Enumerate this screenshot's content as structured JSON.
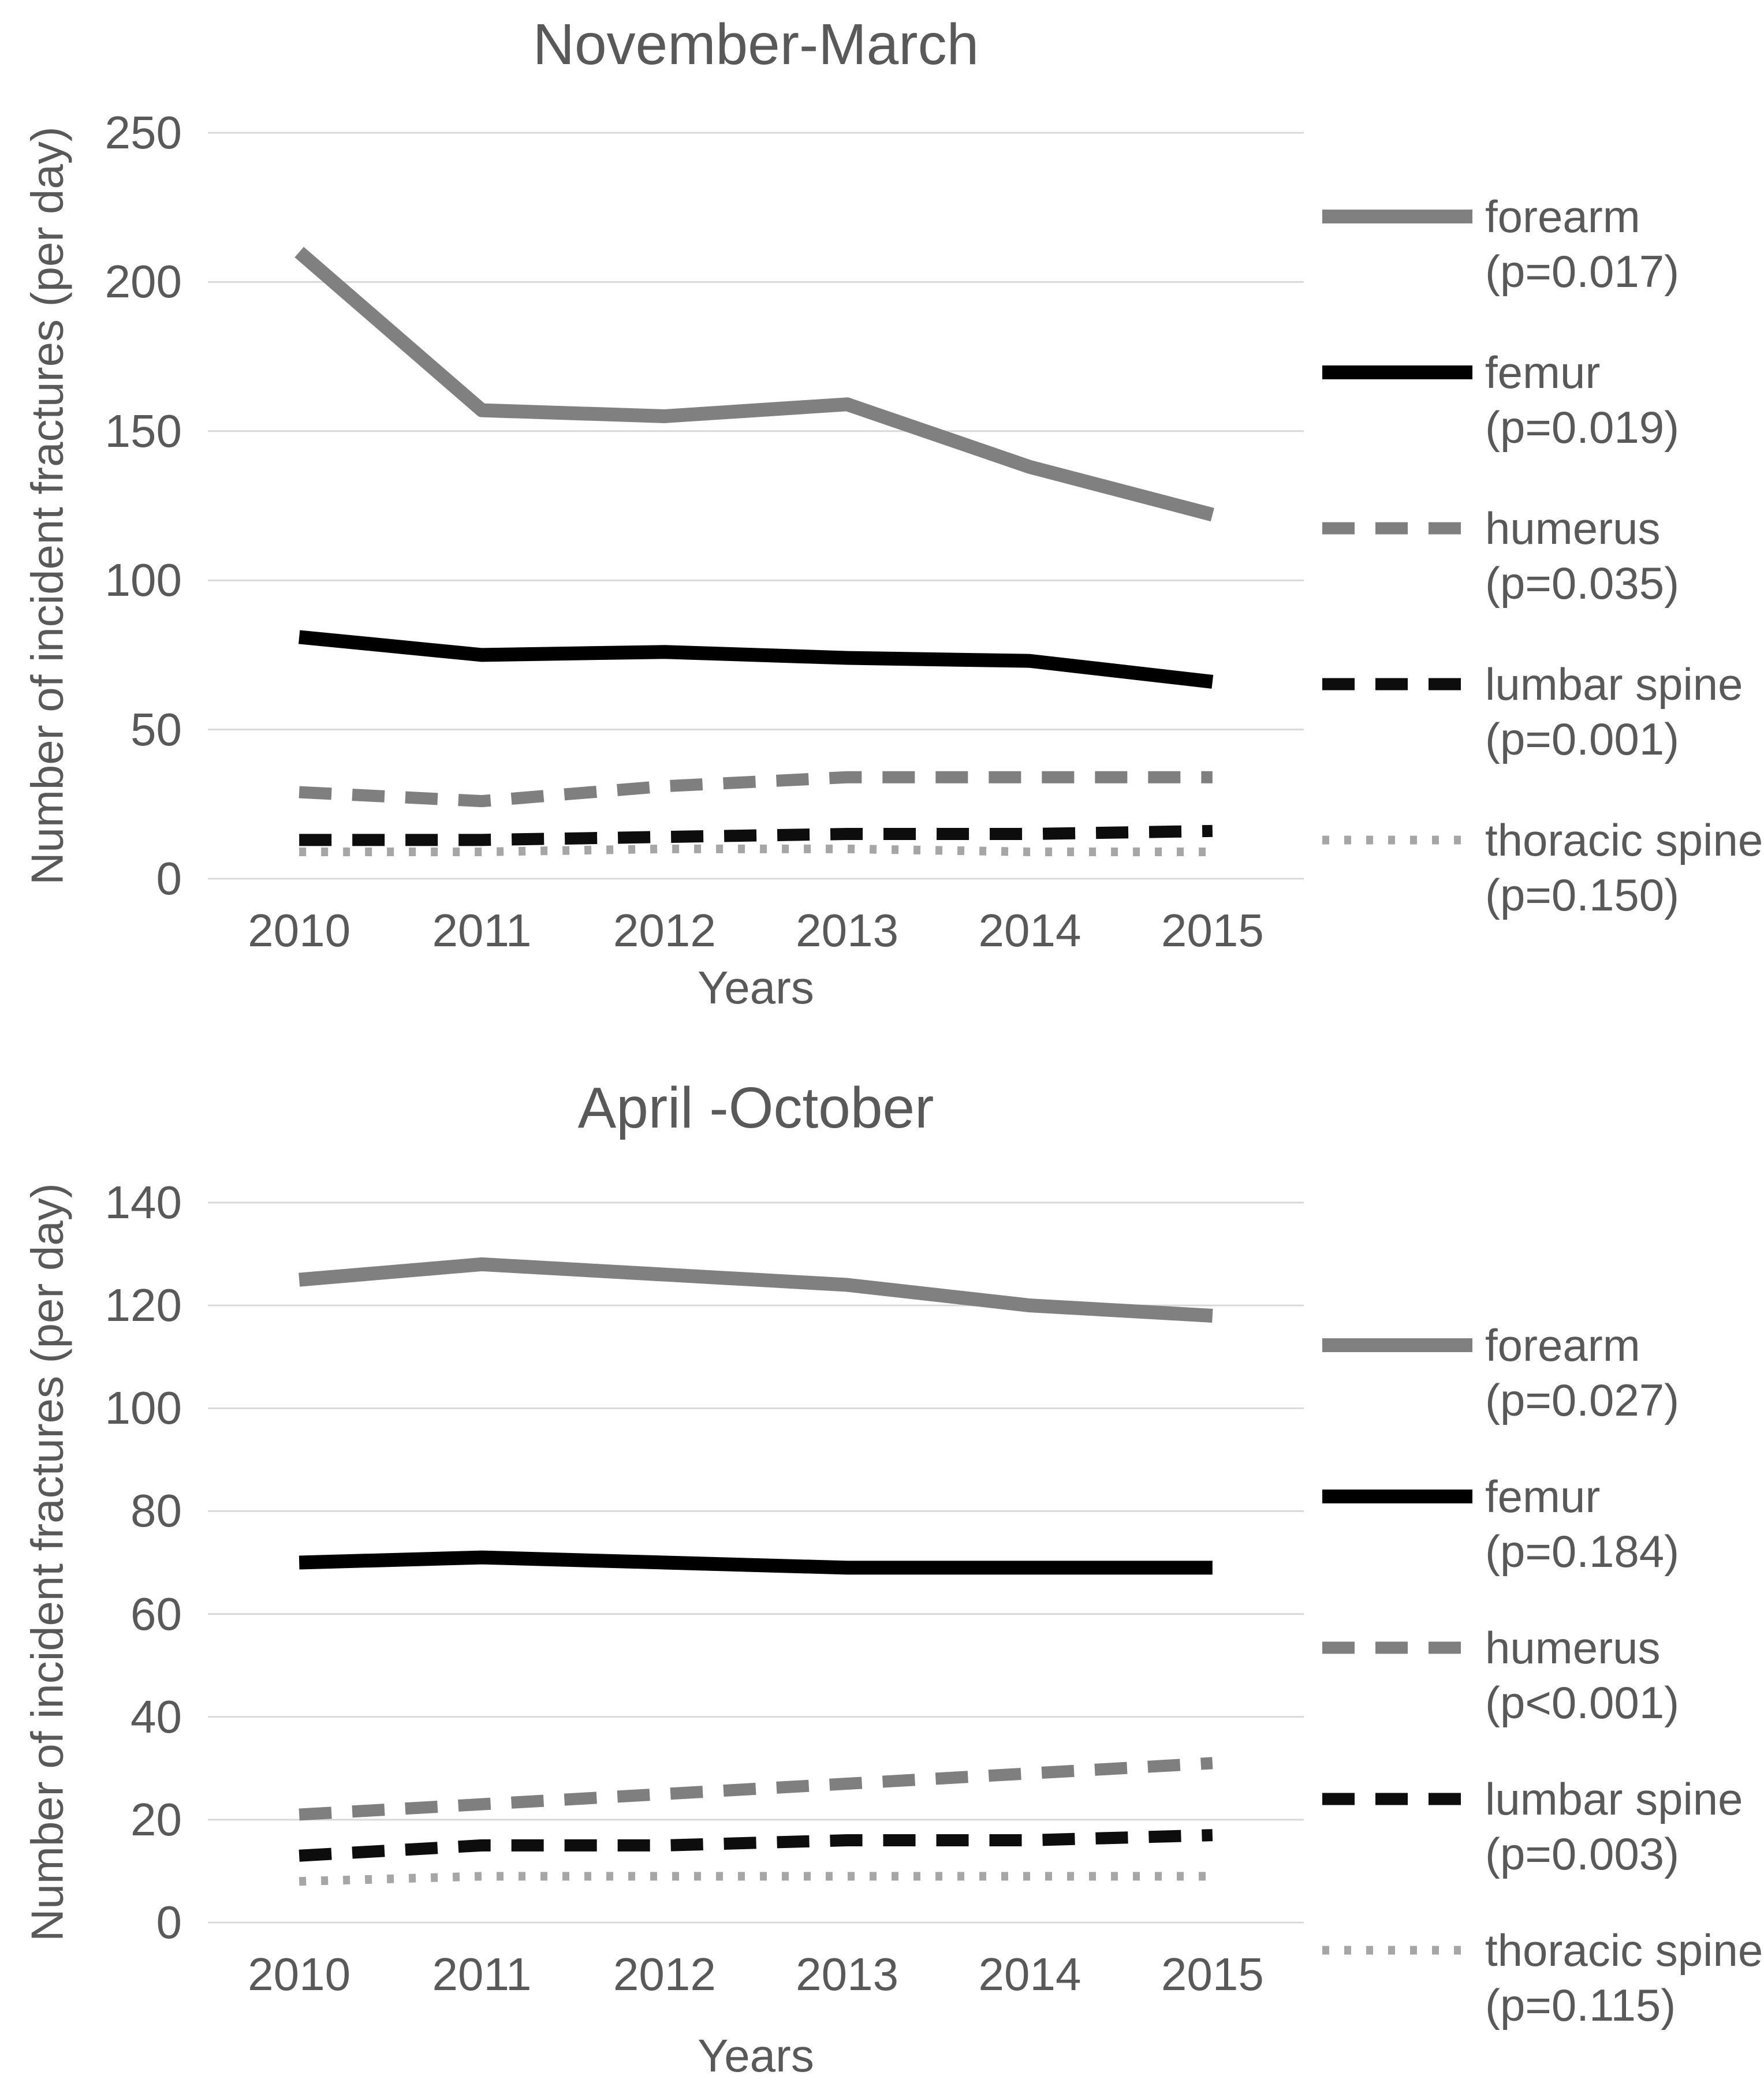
{
  "page": {
    "background": "#ffffff"
  },
  "styles": {
    "text_color": "#595959",
    "gridline_color": "#d9d9d9"
  },
  "chart_data": [
    {
      "type": "line",
      "title": "November-March",
      "xlabel": "Years",
      "ylabel": "Number of incident fractures (per day)",
      "categories": [
        "2010",
        "2011",
        "2012",
        "2013",
        "2014",
        "2015"
      ],
      "ylim": [
        0,
        250
      ],
      "yticks": [
        250,
        200,
        150,
        100,
        50,
        0
      ],
      "grid": true,
      "legend_position": "right",
      "series": [
        {
          "name": "forearm",
          "p_label": "(p=0.017)",
          "style": "solid",
          "color": "#808080",
          "values": [
            210,
            157,
            155,
            159,
            138,
            122
          ]
        },
        {
          "name": "femur",
          "p_label": "(p=0.019)",
          "style": "solid",
          "color": "#000000",
          "values": [
            81,
            75,
            76,
            74,
            73,
            66
          ]
        },
        {
          "name": "humerus",
          "p_label": "(p=0.035)",
          "style": "dashed",
          "color": "#7f7f7f",
          "values": [
            29,
            26,
            31,
            34,
            34,
            34
          ]
        },
        {
          "name": "lumbar spine",
          "p_label": "(p=0.001)",
          "style": "dashed",
          "color": "#0d0d0d",
          "values": [
            13,
            13,
            14,
            15,
            15,
            16
          ]
        },
        {
          "name": "thoracic spine",
          "p_label": "(p=0.150)",
          "style": "dotted",
          "color": "#a6a6a6",
          "values": [
            9,
            9,
            10,
            10,
            9,
            9
          ]
        }
      ]
    },
    {
      "type": "line",
      "title": "April -October",
      "xlabel": "Years",
      "ylabel": "Number of incident fractures (per day)",
      "categories": [
        "2010",
        "2011",
        "2012",
        "2013",
        "2014",
        "2015"
      ],
      "ylim": [
        0,
        140
      ],
      "yticks": [
        140,
        120,
        100,
        80,
        60,
        40,
        20,
        0
      ],
      "grid": true,
      "legend_position": "right",
      "series": [
        {
          "name": "forearm",
          "p_label": "(p=0.027)",
          "style": "solid",
          "color": "#808080",
          "values": [
            125,
            128,
            126,
            124,
            120,
            118
          ]
        },
        {
          "name": "femur",
          "p_label": "(p=0.184)",
          "style": "solid",
          "color": "#000000",
          "values": [
            70,
            71,
            70,
            69,
            69,
            69
          ]
        },
        {
          "name": "humerus",
          "p_label": "(p<0.001)",
          "style": "dashed",
          "color": "#7f7f7f",
          "values": [
            21,
            23,
            25,
            27,
            29,
            31
          ]
        },
        {
          "name": "lumbar spine",
          "p_label": "(p=0.003)",
          "style": "dashed",
          "color": "#0d0d0d",
          "values": [
            13,
            15,
            15,
            16,
            16,
            17
          ]
        },
        {
          "name": "thoracic spine",
          "p_label": "(p=0.115)",
          "style": "dotted",
          "color": "#a6a6a6",
          "values": [
            8,
            9,
            9,
            9,
            9,
            9
          ]
        }
      ]
    }
  ]
}
